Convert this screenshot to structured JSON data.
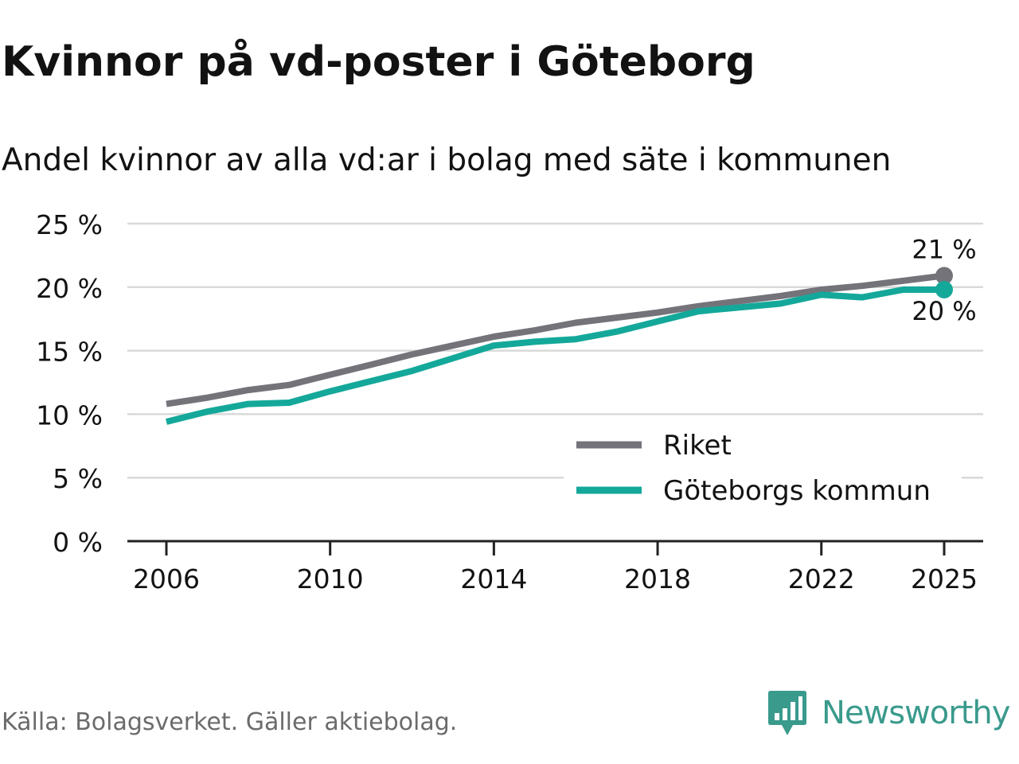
{
  "header": {
    "title": "Kvinnor på vd-poster i Göteborg",
    "subtitle": "Andel kvinnor av alla vd:ar i bolag med säte i kommunen"
  },
  "footer": {
    "source": "Källa: Bolagsverket. Gäller aktiebolag.",
    "logo_text": "Newsworthy"
  },
  "colors": {
    "riket": "#75737a",
    "goteborg": "#14a89a",
    "grid": "#d9d9d9",
    "axis": "#222222",
    "text": "#121212",
    "logo": "#3a9a8c"
  },
  "chart_data": {
    "type": "line",
    "title": "Kvinnor på vd-poster i Göteborg",
    "subtitle": "Andel kvinnor av alla vd:ar i bolag med säte i kommunen",
    "xlabel": "",
    "ylabel": "",
    "x": [
      2006,
      2007,
      2008,
      2009,
      2010,
      2011,
      2012,
      2013,
      2014,
      2015,
      2016,
      2017,
      2018,
      2019,
      2020,
      2021,
      2022,
      2023,
      2024,
      2025
    ],
    "xticks": [
      2006,
      2010,
      2014,
      2018,
      2022,
      2025
    ],
    "xtick_labels": [
      "2006",
      "2010",
      "2014",
      "2018",
      "2022",
      "2025"
    ],
    "ylim": [
      0,
      25
    ],
    "yticks": [
      0,
      5,
      10,
      15,
      20,
      25
    ],
    "ytick_labels": [
      "0 %",
      "5 %",
      "10 %",
      "15 %",
      "20 %",
      "25 %"
    ],
    "grid": true,
    "legend_position": "bottom-right",
    "series": [
      {
        "name": "Riket",
        "color": "#75737a",
        "values": [
          10.8,
          11.3,
          11.9,
          12.3,
          13.1,
          13.9,
          14.7,
          15.4,
          16.1,
          16.6,
          17.2,
          17.6,
          18.0,
          18.5,
          18.9,
          19.3,
          19.8,
          20.1,
          20.5,
          20.9
        ],
        "end_label": "21 %"
      },
      {
        "name": "Göteborgs kommun",
        "color": "#14a89a",
        "values": [
          9.4,
          10.2,
          10.8,
          10.9,
          11.8,
          12.6,
          13.4,
          14.4,
          15.4,
          15.7,
          15.9,
          16.5,
          17.3,
          18.1,
          18.4,
          18.7,
          19.4,
          19.2,
          19.8,
          19.8
        ],
        "end_label": "20 %"
      }
    ]
  }
}
